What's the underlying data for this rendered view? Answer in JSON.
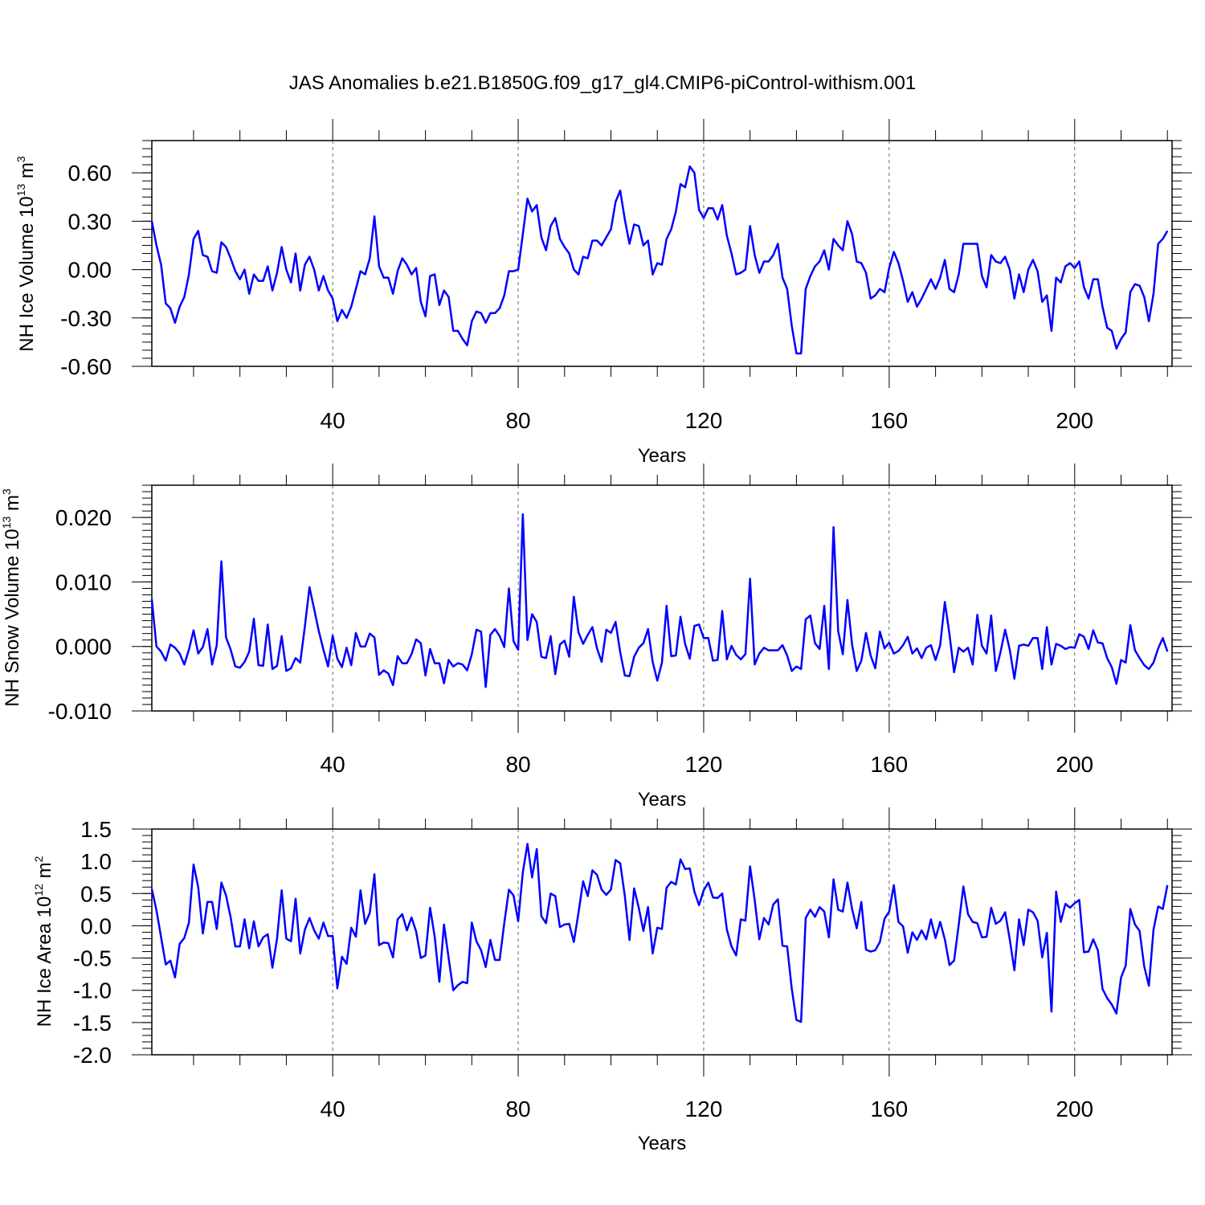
{
  "title": "JAS Anomalies b.e21.B1850G.f09_g17_gl4.CMIP6-piControl-withism.001",
  "colors": {
    "line": "#0000ff",
    "axis": "#000000",
    "grid": "#000000",
    "background": "#ffffff"
  },
  "chart_data": [
    {
      "type": "line",
      "ylabel": {
        "base": "NH Ice Volume 10",
        "exp": "13",
        "unit": " m",
        "unit_exp": "3"
      },
      "xlabel": "Years",
      "xlim": [
        1,
        221
      ],
      "ylim": [
        -0.6,
        0.8
      ],
      "x_ticks": [
        40,
        80,
        120,
        160,
        200
      ],
      "x_tick_labels": [
        "40",
        "80",
        "120",
        "160",
        "200"
      ],
      "y_ticks": [
        -0.6,
        -0.3,
        0.0,
        0.3,
        0.6
      ],
      "y_tick_labels": [
        "-0.60",
        "-0.30",
        "0.00",
        "0.30",
        "0.60"
      ],
      "grid": "dashed vertical at x ticks",
      "x_start": 1,
      "series": [
        {
          "values": [
            0.3,
            0.15,
            0.03,
            -0.21,
            -0.24,
            -0.33,
            -0.23,
            -0.17,
            -0.03,
            0.19,
            0.24,
            0.09,
            0.08,
            -0.01,
            -0.02,
            0.17,
            0.14,
            0.07,
            -0.01,
            -0.06,
            0.0,
            -0.15,
            -0.03,
            -0.07,
            -0.07,
            0.02,
            -0.13,
            -0.02,
            0.14,
            0.0,
            -0.08,
            0.1,
            -0.13,
            0.03,
            0.08,
            0.0,
            -0.13,
            -0.04,
            -0.13,
            -0.18,
            -0.32,
            -0.25,
            -0.3,
            -0.23,
            -0.12,
            -0.01,
            -0.03,
            0.07,
            0.33,
            0.02,
            -0.05,
            -0.05,
            -0.15,
            -0.01,
            0.07,
            0.03,
            -0.03,
            0.01,
            -0.2,
            -0.29,
            -0.04,
            -0.03,
            -0.22,
            -0.13,
            -0.17,
            -0.38,
            -0.38,
            -0.43,
            -0.47,
            -0.32,
            -0.26,
            -0.27,
            -0.33,
            -0.27,
            -0.27,
            -0.24,
            -0.16,
            -0.01,
            -0.01,
            0.0,
            0.22,
            0.44,
            0.36,
            0.4,
            0.2,
            0.12,
            0.27,
            0.32,
            0.19,
            0.14,
            0.1,
            0.0,
            -0.03,
            0.08,
            0.07,
            0.18,
            0.18,
            0.15,
            0.2,
            0.25,
            0.42,
            0.49,
            0.31,
            0.16,
            0.28,
            0.27,
            0.15,
            0.18,
            -0.03,
            0.04,
            0.03,
            0.19,
            0.25,
            0.36,
            0.53,
            0.51,
            0.64,
            0.6,
            0.37,
            0.32,
            0.38,
            0.38,
            0.31,
            0.4,
            0.21,
            0.1,
            -0.03,
            -0.02,
            0.0,
            0.27,
            0.09,
            -0.02,
            0.05,
            0.05,
            0.09,
            0.16,
            -0.05,
            -0.12,
            -0.35,
            -0.52,
            -0.52,
            -0.12,
            -0.04,
            0.02,
            0.05,
            0.12,
            0.0,
            0.19,
            0.15,
            0.12,
            0.3,
            0.22,
            0.05,
            0.04,
            -0.02,
            -0.18,
            -0.16,
            -0.12,
            -0.14,
            0.01,
            0.11,
            0.04,
            -0.07,
            -0.2,
            -0.14,
            -0.23,
            -0.18,
            -0.12,
            -0.06,
            -0.12,
            -0.05,
            0.06,
            -0.12,
            -0.14,
            -0.03,
            0.16,
            0.16,
            0.16,
            0.16,
            -0.04,
            -0.11,
            0.09,
            0.05,
            0.04,
            0.08,
            0.0,
            -0.18,
            -0.03,
            -0.14,
            0.0,
            0.06,
            -0.01,
            -0.2,
            -0.16,
            -0.38,
            -0.05,
            -0.08,
            0.02,
            0.04,
            0.01,
            0.05,
            -0.11,
            -0.18,
            -0.06,
            -0.06,
            -0.23,
            -0.36,
            -0.38,
            -0.49,
            -0.43,
            -0.39,
            -0.14,
            -0.09,
            -0.1,
            -0.17,
            -0.32,
            -0.15,
            0.16,
            0.19,
            0.24
          ]
        }
      ]
    },
    {
      "type": "line",
      "ylabel": {
        "base": "NH Snow Volume 10",
        "exp": "13",
        "unit": " m",
        "unit_exp": "3"
      },
      "xlabel": "Years",
      "xlim": [
        1,
        221
      ],
      "ylim": [
        -0.01,
        0.025
      ],
      "x_ticks": [
        40,
        80,
        120,
        160,
        200
      ],
      "x_tick_labels": [
        "40",
        "80",
        "120",
        "160",
        "200"
      ],
      "y_ticks": [
        -0.01,
        0.0,
        0.01,
        0.02
      ],
      "y_tick_labels": [
        "-0.010",
        "0.000",
        "0.010",
        "0.020"
      ],
      "grid": "dashed vertical at x ticks",
      "x_start": 1,
      "series": [
        {
          "values": [
            0.0073,
            0.0,
            -0.0008,
            -0.0022,
            0.0003,
            -0.0002,
            -0.0011,
            -0.0028,
            -0.0005,
            0.0025,
            -0.0011,
            -0.0001,
            0.0027,
            -0.0028,
            0.0002,
            0.0132,
            0.0014,
            -0.0005,
            -0.0031,
            -0.0033,
            -0.0024,
            -0.0008,
            0.0043,
            -0.0029,
            -0.003,
            0.0034,
            -0.0035,
            -0.003,
            0.0016,
            -0.0038,
            -0.0034,
            -0.0018,
            -0.0025,
            0.0031,
            0.0092,
            0.0058,
            0.0024,
            -0.0005,
            -0.0031,
            0.0017,
            -0.0019,
            -0.0032,
            -0.0002,
            -0.0029,
            0.0021,
            0.0,
            0.0,
            0.002,
            0.0014,
            -0.0044,
            -0.0037,
            -0.0042,
            -0.006,
            -0.0015,
            -0.0026,
            -0.0026,
            -0.0012,
            0.0011,
            0.0005,
            -0.0045,
            -0.0004,
            -0.0026,
            -0.0026,
            -0.0057,
            -0.0021,
            -0.0031,
            -0.0026,
            -0.0028,
            -0.0037,
            -0.0012,
            0.0026,
            0.0023,
            -0.0063,
            0.0018,
            0.0027,
            0.0016,
            -0.0001,
            0.009,
            0.0008,
            -0.0005,
            0.0205,
            0.001,
            0.005,
            0.0038,
            -0.0016,
            -0.0018,
            0.0016,
            -0.0043,
            0.0003,
            0.0009,
            -0.0016,
            0.0077,
            0.0022,
            0.0004,
            0.0018,
            0.003,
            -0.0003,
            -0.0024,
            0.0026,
            0.0021,
            0.0038,
            -0.0009,
            -0.0045,
            -0.0046,
            -0.0016,
            -0.0002,
            0.0005,
            0.0027,
            -0.0024,
            -0.0053,
            -0.0025,
            0.0063,
            -0.0015,
            -0.0014,
            0.0046,
            0.0004,
            -0.0019,
            0.0032,
            0.0034,
            0.0013,
            0.0013,
            -0.0022,
            -0.0021,
            0.0055,
            -0.002,
            0.0001,
            -0.0013,
            -0.002,
            -0.0012,
            0.0105,
            -0.0028,
            -0.0011,
            -0.0002,
            -0.0006,
            -0.0006,
            -0.0006,
            0.0002,
            -0.0014,
            -0.0038,
            -0.0031,
            -0.0035,
            0.0042,
            0.0048,
            0.0005,
            -0.0004,
            0.0063,
            -0.0035,
            0.0185,
            0.0024,
            -0.0012,
            0.0072,
            0.0003,
            -0.0038,
            -0.0022,
            0.0021,
            -0.0014,
            -0.0034,
            0.0023,
            -0.0003,
            0.0006,
            -0.0011,
            -0.0007,
            0.0002,
            0.0015,
            -0.0011,
            -0.0003,
            -0.0018,
            -0.0002,
            0.0002,
            -0.0021,
            0.0002,
            0.0069,
            0.0019,
            -0.004,
            -0.0002,
            -0.0008,
            -0.0002,
            -0.0028,
            0.0049,
            0.0001,
            -0.0011,
            0.0048,
            -0.0038,
            -0.0009,
            0.0026,
            -0.0005,
            -0.005,
            0.0001,
            0.0003,
            0.0001,
            0.0013,
            0.0013,
            -0.0035,
            0.003,
            -0.0028,
            0.0004,
            0.0001,
            -0.0004,
            -0.0001,
            -0.0002,
            0.0019,
            0.0015,
            -0.0004,
            0.0025,
            0.0006,
            0.0005,
            -0.0018,
            -0.0032,
            -0.0058,
            -0.0021,
            -0.0025,
            0.0033,
            -0.0006,
            -0.0018,
            -0.0029,
            -0.0035,
            -0.0025,
            -0.0003,
            0.0013,
            -0.0008
          ]
        }
      ]
    },
    {
      "type": "line",
      "ylabel": {
        "base": "NH Ice Area 10",
        "exp": "12",
        "unit": " m",
        "unit_exp": "2"
      },
      "xlabel": "Years",
      "xlim": [
        1,
        221
      ],
      "ylim": [
        -2.0,
        1.5
      ],
      "x_ticks": [
        40,
        80,
        120,
        160,
        200
      ],
      "x_tick_labels": [
        "40",
        "80",
        "120",
        "160",
        "200"
      ],
      "y_ticks": [
        -2.0,
        -1.5,
        -1.0,
        -0.5,
        0.0,
        0.5,
        1.0,
        1.5
      ],
      "y_tick_labels": [
        "-2.0",
        "-1.5",
        "-1.0",
        "-0.5",
        "0.0",
        "0.5",
        "1.0",
        "1.5"
      ],
      "grid": "dashed vertical at x ticks",
      "x_start": 1,
      "series": [
        {
          "values": [
            0.57,
            0.24,
            -0.18,
            -0.6,
            -0.54,
            -0.8,
            -0.28,
            -0.19,
            0.05,
            0.95,
            0.6,
            -0.12,
            0.37,
            0.37,
            -0.05,
            0.67,
            0.47,
            0.13,
            -0.32,
            -0.32,
            0.1,
            -0.35,
            0.07,
            -0.32,
            -0.18,
            -0.13,
            -0.65,
            -0.2,
            0.55,
            -0.2,
            -0.24,
            0.42,
            -0.43,
            -0.06,
            0.12,
            -0.07,
            -0.2,
            0.05,
            -0.16,
            -0.16,
            -0.97,
            -0.48,
            -0.59,
            -0.03,
            -0.17,
            0.55,
            0.03,
            0.2,
            0.8,
            -0.3,
            -0.26,
            -0.27,
            -0.49,
            0.1,
            0.18,
            -0.07,
            0.13,
            -0.09,
            -0.5,
            -0.46,
            0.28,
            -0.17,
            -0.87,
            0.02,
            -0.5,
            -1.0,
            -0.92,
            -0.87,
            -0.89,
            0.05,
            -0.24,
            -0.38,
            -0.64,
            -0.22,
            -0.53,
            -0.53,
            0.04,
            0.56,
            0.47,
            0.07,
            0.83,
            1.27,
            0.75,
            1.19,
            0.15,
            0.04,
            0.5,
            0.46,
            -0.02,
            0.02,
            0.03,
            -0.25,
            0.2,
            0.69,
            0.46,
            0.86,
            0.79,
            0.56,
            0.48,
            0.56,
            1.02,
            0.97,
            0.46,
            -0.22,
            0.58,
            0.28,
            -0.08,
            0.29,
            -0.43,
            -0.03,
            -0.05,
            0.59,
            0.68,
            0.64,
            1.03,
            0.88,
            0.89,
            0.53,
            0.32,
            0.55,
            0.67,
            0.44,
            0.43,
            0.5,
            -0.06,
            -0.32,
            -0.46,
            0.1,
            0.08,
            0.92,
            0.4,
            -0.21,
            0.12,
            0.02,
            0.33,
            0.41,
            -0.31,
            -0.32,
            -0.98,
            -1.46,
            -1.49,
            0.12,
            0.25,
            0.14,
            0.29,
            0.22,
            -0.18,
            0.72,
            0.25,
            0.22,
            0.67,
            0.26,
            -0.04,
            0.37,
            -0.37,
            -0.4,
            -0.38,
            -0.25,
            0.11,
            0.22,
            0.63,
            0.06,
            -0.01,
            -0.42,
            -0.1,
            -0.22,
            -0.07,
            -0.21,
            0.1,
            -0.19,
            0.06,
            -0.21,
            -0.61,
            -0.54,
            0.02,
            0.61,
            0.18,
            0.06,
            0.04,
            -0.18,
            -0.17,
            0.28,
            0.03,
            0.08,
            0.21,
            -0.21,
            -0.69,
            0.1,
            -0.3,
            0.25,
            0.21,
            0.08,
            -0.49,
            -0.11,
            -1.33,
            0.53,
            0.06,
            0.34,
            0.28,
            0.35,
            0.4,
            -0.41,
            -0.4,
            -0.21,
            -0.38,
            -0.98,
            -1.12,
            -1.22,
            -1.36,
            -0.8,
            -0.62,
            0.26,
            0.02,
            -0.08,
            -0.63,
            -0.93,
            -0.06,
            0.3,
            0.26,
            0.63
          ]
        }
      ]
    }
  ]
}
